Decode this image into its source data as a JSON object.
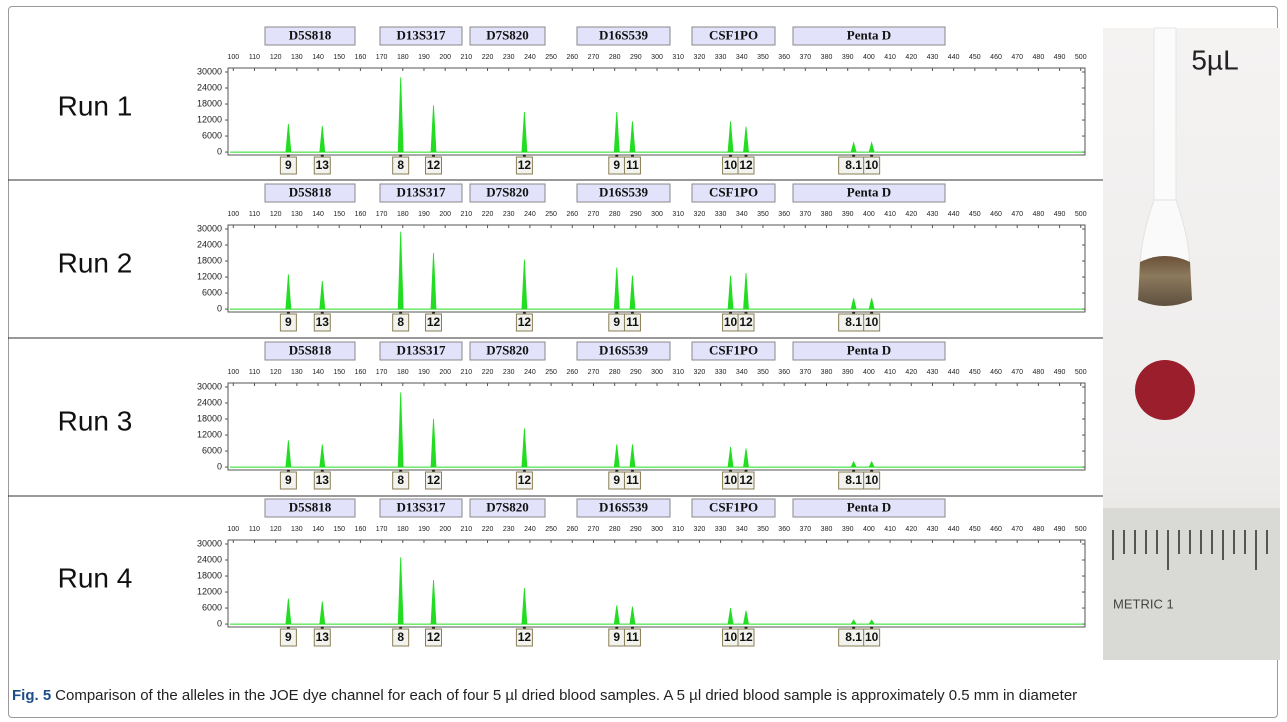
{
  "chart_data": [
    {
      "type": "peaks",
      "title": "Run 1",
      "loci": [
        "D5S818",
        "D13S317",
        "D7S820",
        "D16S539",
        "CSF1PO",
        "Penta D"
      ],
      "x": [
        126,
        142,
        179,
        194.5,
        237.4,
        281,
        288.4,
        334.7,
        342,
        392.8,
        401.3
      ],
      "values": [
        10500,
        9800,
        28000,
        17500,
        15000,
        15000,
        11500,
        11500,
        9500,
        3500,
        3500
      ],
      "alleles": [
        "9",
        "13",
        "8",
        "12",
        "12",
        "9",
        "11",
        "10",
        "12",
        "8.1",
        "10"
      ],
      "color": "#22dd22",
      "xlim": [
        97.5,
        502
      ],
      "ylim": [
        -1100,
        31500
      ],
      "xticks": [
        100,
        110,
        120,
        130,
        140,
        150,
        160,
        170,
        180,
        190,
        200,
        210,
        220,
        230,
        240,
        250,
        260,
        270,
        280,
        290,
        300,
        310,
        320,
        330,
        340,
        350,
        360,
        370,
        380,
        390,
        400,
        410,
        420,
        430,
        440,
        450,
        460,
        470,
        480,
        490,
        500
      ],
      "yticks": [
        0,
        6000,
        12000,
        18000,
        24000,
        30000
      ]
    },
    {
      "type": "peaks",
      "title": "Run 2",
      "loci": [
        "D5S818",
        "D13S317",
        "D7S820",
        "D16S539",
        "CSF1PO",
        "Penta D"
      ],
      "x": [
        126,
        142,
        179,
        194.5,
        237.4,
        281,
        288.4,
        334.7,
        342,
        392.8,
        401.3
      ],
      "values": [
        13000,
        10500,
        29000,
        21000,
        18500,
        15500,
        12500,
        12500,
        13500,
        4000,
        4000
      ],
      "alleles": [
        "9",
        "13",
        "8",
        "12",
        "12",
        "9",
        "11",
        "10",
        "12",
        "8.1",
        "10"
      ],
      "color": "#22dd22",
      "xlim": [
        97.5,
        502
      ],
      "ylim": [
        -1100,
        31500
      ],
      "xticks": [
        100,
        110,
        120,
        130,
        140,
        150,
        160,
        170,
        180,
        190,
        200,
        210,
        220,
        230,
        240,
        250,
        260,
        270,
        280,
        290,
        300,
        310,
        320,
        330,
        340,
        350,
        360,
        370,
        380,
        390,
        400,
        410,
        420,
        430,
        440,
        450,
        460,
        470,
        480,
        490,
        500
      ],
      "yticks": [
        0,
        6000,
        12000,
        18000,
        24000,
        30000
      ]
    },
    {
      "type": "peaks",
      "title": "Run 3",
      "loci": [
        "D5S818",
        "D13S317",
        "D7S820",
        "D16S539",
        "CSF1PO",
        "Penta D"
      ],
      "x": [
        126,
        142,
        179,
        194.5,
        237.4,
        281,
        288.4,
        334.7,
        342,
        392.8,
        401.3
      ],
      "values": [
        10000,
        8500,
        28000,
        18000,
        14500,
        8500,
        8500,
        7500,
        7000,
        2000,
        2000
      ],
      "alleles": [
        "9",
        "13",
        "8",
        "12",
        "12",
        "9",
        "11",
        "10",
        "12",
        "8.1",
        "10"
      ],
      "color": "#22dd22",
      "xlim": [
        97.5,
        502
      ],
      "ylim": [
        -1100,
        31500
      ],
      "xticks": [
        100,
        110,
        120,
        130,
        140,
        150,
        160,
        170,
        180,
        190,
        200,
        210,
        220,
        230,
        240,
        250,
        260,
        270,
        280,
        290,
        300,
        310,
        320,
        330,
        340,
        350,
        360,
        370,
        380,
        390,
        400,
        410,
        420,
        430,
        440,
        450,
        460,
        470,
        480,
        490,
        500
      ],
      "yticks": [
        0,
        6000,
        12000,
        18000,
        24000,
        30000
      ]
    },
    {
      "type": "peaks",
      "title": "Run 4",
      "loci": [
        "D5S818",
        "D13S317",
        "D7S820",
        "D16S539",
        "CSF1PO",
        "Penta D"
      ],
      "x": [
        126,
        142,
        179,
        194.5,
        237.4,
        281,
        288.4,
        334.7,
        342,
        392.8,
        401.3
      ],
      "values": [
        9500,
        8500,
        25000,
        16500,
        13500,
        7000,
        6500,
        6000,
        5000,
        1500,
        1500
      ],
      "alleles": [
        "9",
        "13",
        "8",
        "12",
        "12",
        "9",
        "11",
        "10",
        "12",
        "8.1",
        "10"
      ],
      "color": "#22dd22",
      "xlim": [
        97.5,
        502
      ],
      "ylim": [
        -1100,
        31500
      ],
      "xticks": [
        100,
        110,
        120,
        130,
        140,
        150,
        160,
        170,
        180,
        190,
        200,
        210,
        220,
        230,
        240,
        250,
        260,
        270,
        280,
        290,
        300,
        310,
        320,
        330,
        340,
        350,
        360,
        370,
        380,
        390,
        400,
        410,
        420,
        430,
        440,
        450,
        460,
        470,
        480,
        490,
        500
      ],
      "yticks": [
        0,
        6000,
        12000,
        18000,
        24000,
        30000
      ]
    }
  ],
  "photo": {
    "volume_label": "5µL",
    "ruler_label": "METRIC 1"
  },
  "caption": {
    "label": "Fig. 5",
    "text": "Comparison of the alleles in the JOE dye channel for each of four 5 µl dried blood samples. A 5 µl dried blood sample is approximately 0.5 mm in diameter"
  }
}
